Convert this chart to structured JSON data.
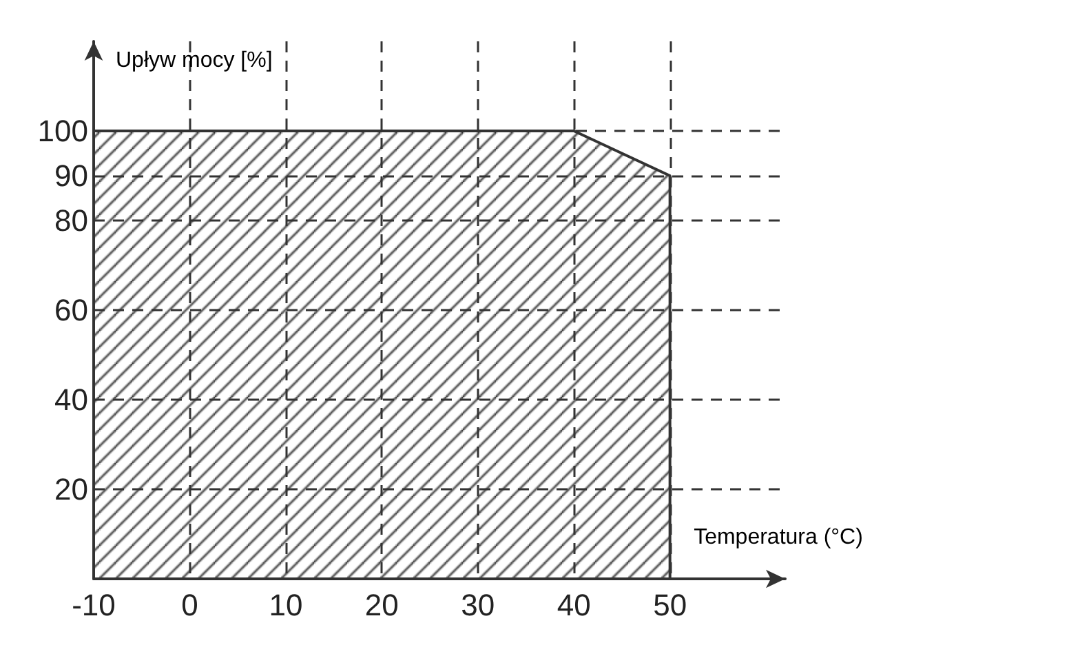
{
  "chart_data": {
    "type": "area",
    "xlabel": "Temperatura (°C)",
    "ylabel": "Upływ mocy [%]",
    "x": [
      -10,
      0,
      10,
      20,
      30,
      40,
      50,
      50
    ],
    "series": [
      {
        "color": "#333333",
        "values": [
          100,
          100,
          100,
          100,
          100,
          100,
          90,
          0
        ]
      }
    ],
    "xlim": [
      -10,
      62
    ],
    "xticks": [
      -10,
      0,
      10,
      20,
      30,
      40,
      50
    ],
    "ylim": [
      0,
      120
    ],
    "yticks": [
      20,
      40,
      60,
      80,
      90,
      100
    ],
    "grid": true,
    "marker": "none"
  }
}
